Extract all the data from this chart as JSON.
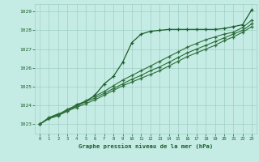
{
  "title": "Graphe pression niveau de la mer (hPa)",
  "background_color": "#c5ece4",
  "grid_color": "#9ecec5",
  "line_color_main": "#1a5c2a",
  "line_color_secondary": "#2d6e3a",
  "xlim": [
    -0.5,
    23.5
  ],
  "ylim": [
    1022.5,
    1029.4
  ],
  "yticks": [
    1023,
    1024,
    1025,
    1026,
    1027,
    1028,
    1029
  ],
  "xticks": [
    0,
    1,
    2,
    3,
    4,
    5,
    6,
    7,
    8,
    9,
    10,
    11,
    12,
    13,
    14,
    15,
    16,
    17,
    18,
    19,
    20,
    21,
    22,
    23
  ],
  "series1_x": [
    0,
    1,
    2,
    3,
    4,
    5,
    6,
    7,
    8,
    9,
    10,
    11,
    12,
    13,
    14,
    15,
    16,
    17,
    18,
    19,
    20,
    21,
    22,
    23
  ],
  "series1_y": [
    1023.0,
    1023.35,
    1023.55,
    1023.7,
    1024.05,
    1024.2,
    1024.55,
    1025.15,
    1025.55,
    1026.3,
    1027.35,
    1027.8,
    1027.95,
    1028.0,
    1028.05,
    1028.05,
    1028.05,
    1028.05,
    1028.05,
    1028.05,
    1028.1,
    1028.2,
    1028.3,
    1029.1
  ],
  "series2_x": [
    0,
    1,
    2,
    3,
    4,
    5,
    6,
    7,
    8,
    9,
    10,
    11,
    12,
    13,
    14,
    15,
    16,
    17,
    18,
    19,
    20,
    21,
    22,
    23
  ],
  "series2_y": [
    1023.0,
    1023.3,
    1023.5,
    1023.8,
    1024.0,
    1024.25,
    1024.5,
    1024.75,
    1025.05,
    1025.35,
    1025.6,
    1025.85,
    1026.1,
    1026.35,
    1026.6,
    1026.85,
    1027.1,
    1027.3,
    1027.5,
    1027.65,
    1027.8,
    1027.9,
    1028.15,
    1028.55
  ],
  "series3_x": [
    0,
    1,
    2,
    3,
    4,
    5,
    6,
    7,
    8,
    9,
    10,
    11,
    12,
    13,
    14,
    15,
    16,
    17,
    18,
    19,
    20,
    21,
    22,
    23
  ],
  "series3_y": [
    1023.0,
    1023.3,
    1023.5,
    1023.75,
    1023.95,
    1024.2,
    1024.4,
    1024.65,
    1024.9,
    1025.15,
    1025.4,
    1025.6,
    1025.85,
    1026.05,
    1026.3,
    1026.55,
    1026.8,
    1027.0,
    1027.2,
    1027.4,
    1027.6,
    1027.8,
    1028.0,
    1028.35
  ],
  "series4_x": [
    0,
    1,
    2,
    3,
    4,
    5,
    6,
    7,
    8,
    9,
    10,
    11,
    12,
    13,
    14,
    15,
    16,
    17,
    18,
    19,
    20,
    21,
    22,
    23
  ],
  "series4_y": [
    1023.0,
    1023.3,
    1023.45,
    1023.7,
    1023.9,
    1024.1,
    1024.3,
    1024.55,
    1024.8,
    1025.05,
    1025.25,
    1025.45,
    1025.65,
    1025.85,
    1026.1,
    1026.35,
    1026.6,
    1026.8,
    1027.0,
    1027.2,
    1027.45,
    1027.65,
    1027.9,
    1028.2
  ]
}
